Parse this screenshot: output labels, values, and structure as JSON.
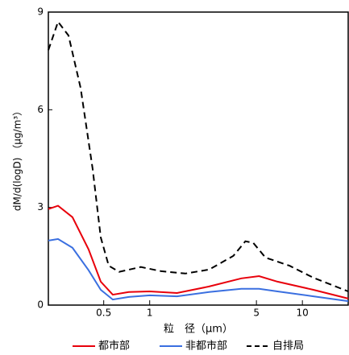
{
  "chart_data": {
    "type": "line",
    "x_label": "粒　径（μm）",
    "y_label": "dM/d(logD) （μg/m³）",
    "xlim": [
      0.217,
      19.95
    ],
    "xticks": [
      0.5,
      1,
      5,
      10
    ],
    "log_x": true,
    "ylim": [
      0,
      9
    ],
    "yticks": [
      0,
      3,
      6,
      9
    ],
    "series": [
      {
        "name": "都市部",
        "color": "#e8000b",
        "dash": false,
        "x": [
          0.217,
          0.251,
          0.312,
          0.398,
          0.478,
          0.573,
          0.73,
          1.0,
          1.51,
          2.45,
          3.98,
          5.2,
          6.87,
          11.8,
          19.95
        ],
        "values": [
          2.95,
          3.05,
          2.7,
          1.71,
          0.72,
          0.32,
          0.4,
          0.42,
          0.37,
          0.57,
          0.82,
          0.89,
          0.72,
          0.47,
          0.2
        ]
      },
      {
        "name": "非都市部",
        "color": "#3a6fe0",
        "dash": false,
        "x": [
          0.217,
          0.251,
          0.312,
          0.398,
          0.478,
          0.573,
          0.73,
          1.0,
          1.51,
          2.45,
          3.98,
          5.2,
          6.87,
          11.8,
          19.95
        ],
        "values": [
          1.98,
          2.03,
          1.76,
          1.07,
          0.47,
          0.17,
          0.25,
          0.3,
          0.27,
          0.4,
          0.5,
          0.5,
          0.42,
          0.27,
          0.12
        ]
      },
      {
        "name": "自排局",
        "color": "#000000",
        "dash": true,
        "x": [
          0.217,
          0.251,
          0.294,
          0.353,
          0.423,
          0.478,
          0.539,
          0.631,
          0.875,
          1.19,
          1.71,
          2.45,
          3.53,
          4.23,
          4.77,
          5.73,
          8.24,
          11.8,
          19.95
        ],
        "values": [
          7.83,
          8.7,
          8.28,
          6.67,
          4.19,
          2.08,
          1.21,
          1.02,
          1.17,
          1.04,
          0.97,
          1.09,
          1.51,
          1.96,
          1.91,
          1.46,
          1.21,
          0.84,
          0.42
        ]
      }
    ]
  }
}
